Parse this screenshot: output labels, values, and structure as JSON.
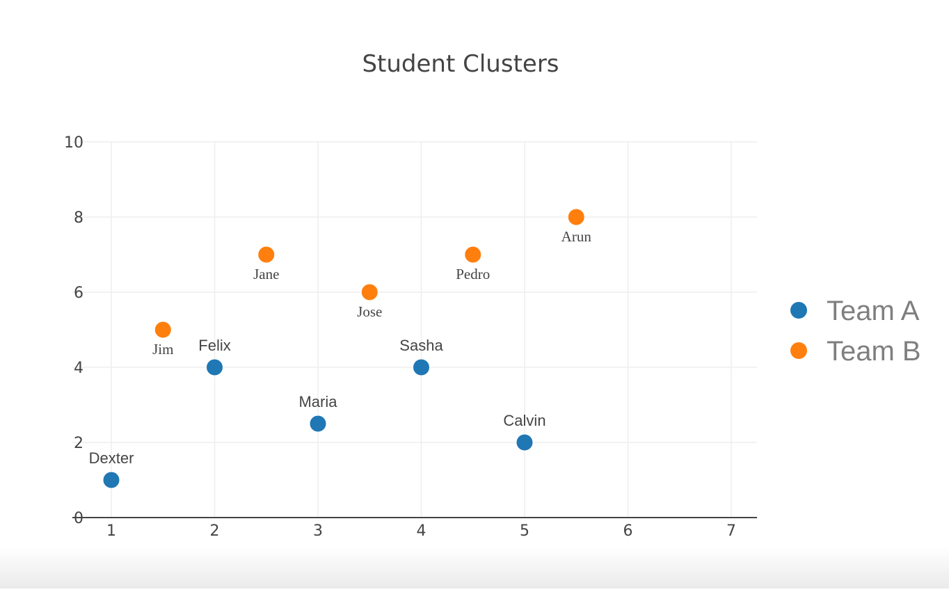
{
  "colors": {
    "team_a": "#1f77b4",
    "team_b": "#ff7f0e",
    "grid": "#eeeeee",
    "axis": "#444444",
    "text": "#444444",
    "legend_text": "#7f7f7f"
  },
  "chart_data": {
    "type": "scatter",
    "title": "Student Clusters",
    "xlabel": "",
    "ylabel": "",
    "xlim": [
      0.8,
      7.25
    ],
    "ylim": [
      0,
      10
    ],
    "xticks": [
      1,
      2,
      3,
      4,
      5,
      6,
      7
    ],
    "yticks": [
      0,
      2,
      4,
      6,
      8,
      10
    ],
    "grid": true,
    "legend_position": "right",
    "series": [
      {
        "name": "Team A",
        "color": "#1f77b4",
        "label_position": "top",
        "label_font": "sans-serif",
        "points": [
          {
            "x": 1,
            "y": 1,
            "label": "Dexter"
          },
          {
            "x": 2,
            "y": 4,
            "label": "Felix"
          },
          {
            "x": 3,
            "y": 2.5,
            "label": "Maria"
          },
          {
            "x": 4,
            "y": 4,
            "label": "Sasha"
          },
          {
            "x": 5,
            "y": 2,
            "label": "Calvin"
          }
        ]
      },
      {
        "name": "Team B",
        "color": "#ff7f0e",
        "label_position": "bottom",
        "label_font": "serif",
        "points": [
          {
            "x": 1.5,
            "y": 5,
            "label": "Jim"
          },
          {
            "x": 2.5,
            "y": 7,
            "label": "Jane"
          },
          {
            "x": 3.5,
            "y": 6,
            "label": "Jose"
          },
          {
            "x": 4.5,
            "y": 7,
            "label": "Pedro"
          },
          {
            "x": 5.5,
            "y": 8,
            "label": "Arun"
          }
        ]
      }
    ]
  }
}
